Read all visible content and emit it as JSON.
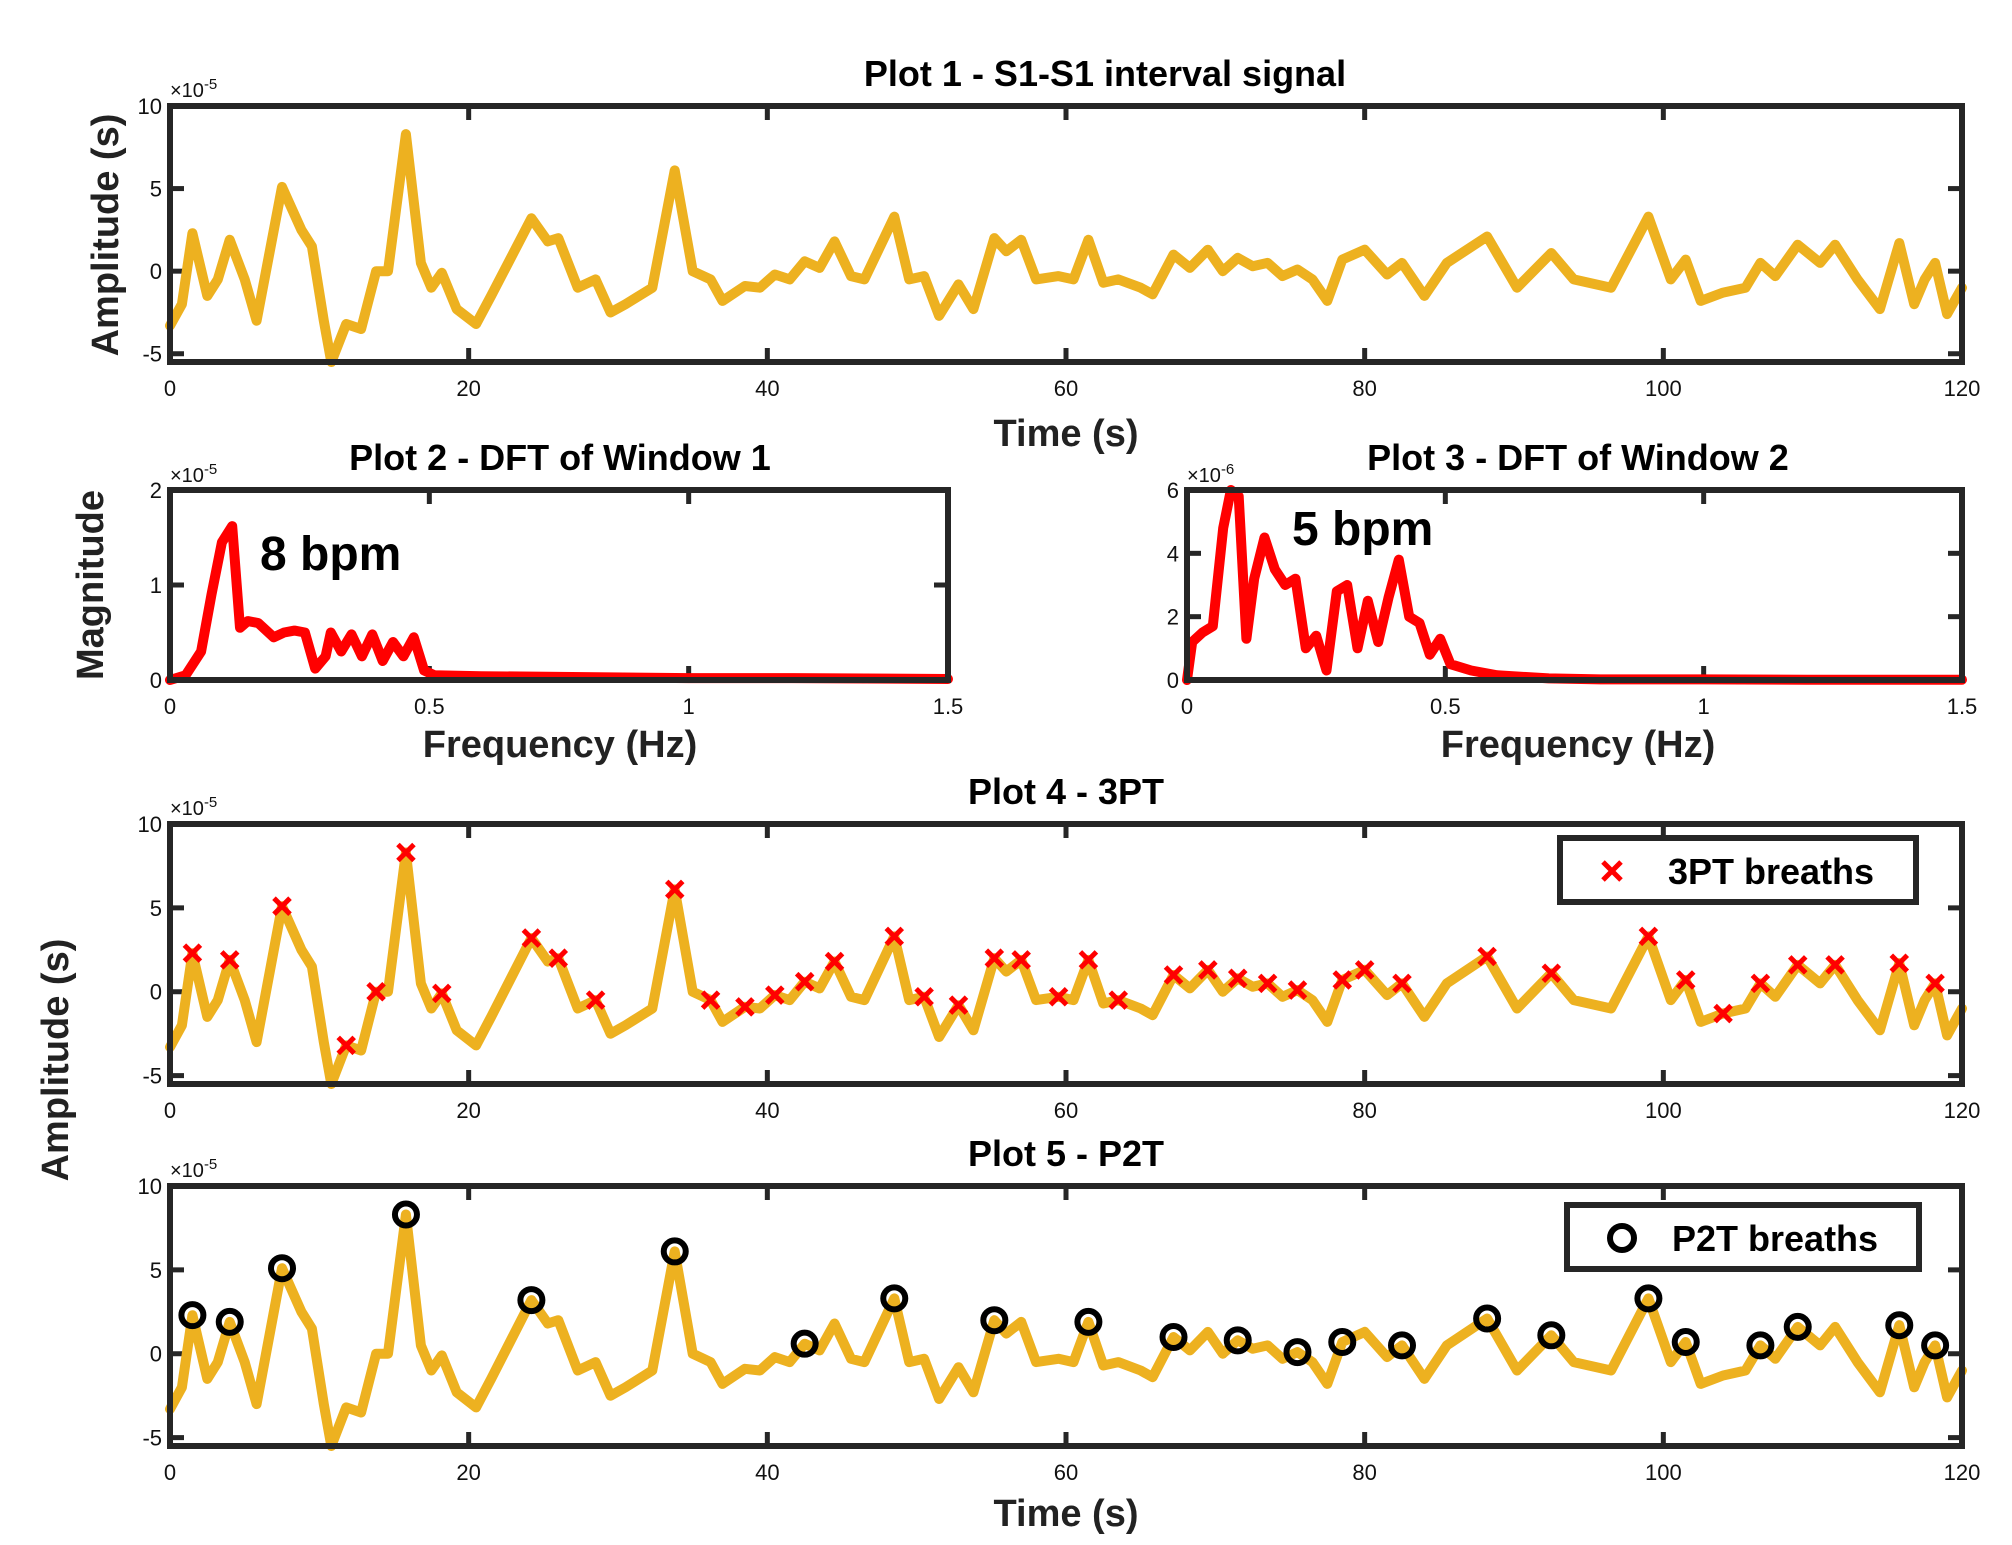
{
  "colors": {
    "signal": "#EDB120",
    "dft": "#FF0000",
    "marker3pt": "#FF0000",
    "markerP2T": "#000000",
    "axis": "#262626"
  },
  "chart_data": [
    {
      "id": "p1",
      "type": "line",
      "title": "Plot 1 - S1-S1 interval signal",
      "xlabel": "Time (s)",
      "ylabel": "Amplitude (s)",
      "exponent": {
        "base": "×10",
        "power": "-5"
      },
      "xlim": [
        0,
        120
      ],
      "ylim": [
        -5.5,
        10
      ],
      "xticks": [
        0,
        20,
        40,
        60,
        80,
        100,
        120
      ],
      "xtick_labels": [
        "0",
        "20",
        "40",
        "60",
        "80",
        "100",
        "120"
      ],
      "yticks": [
        -5,
        0,
        5,
        10
      ],
      "ytick_labels": [
        "-5",
        "0",
        "5",
        "10"
      ],
      "series": [
        {
          "name": "S1-S1 interval",
          "signal": "shared"
        }
      ]
    },
    {
      "id": "p2",
      "type": "line",
      "title": "Plot 2 - DFT of Window 1",
      "xlabel": "Frequency (Hz)",
      "ylabel": "Magnitude",
      "exponent": {
        "base": "×10",
        "power": "-5"
      },
      "xlim": [
        0,
        1.5
      ],
      "ylim": [
        0,
        2
      ],
      "xticks": [
        0,
        0.5,
        1,
        1.5
      ],
      "xtick_labels": [
        "0",
        "0.5",
        "1",
        "1.5"
      ],
      "yticks": [
        0,
        1,
        2
      ],
      "ytick_labels": [
        "0",
        "1",
        "2"
      ],
      "annotation": {
        "text": "8 bpm",
        "x": 0.17,
        "y": 1.35
      },
      "x": [
        0,
        0.03,
        0.06,
        0.08,
        0.1,
        0.12,
        0.135,
        0.15,
        0.17,
        0.2,
        0.22,
        0.24,
        0.26,
        0.28,
        0.3,
        0.31,
        0.33,
        0.35,
        0.37,
        0.39,
        0.41,
        0.43,
        0.45,
        0.47,
        0.49,
        0.51,
        0.6,
        0.8,
        1.0,
        1.2,
        1.5
      ],
      "y": [
        0,
        0.05,
        0.3,
        0.9,
        1.45,
        1.62,
        0.55,
        0.62,
        0.6,
        0.45,
        0.5,
        0.52,
        0.5,
        0.12,
        0.25,
        0.5,
        0.3,
        0.48,
        0.25,
        0.48,
        0.2,
        0.4,
        0.25,
        0.45,
        0.1,
        0.05,
        0.04,
        0.03,
        0.02,
        0.02,
        0.01
      ]
    },
    {
      "id": "p3",
      "type": "line",
      "title": "Plot 3 - DFT of Window 2",
      "xlabel": "Frequency (Hz)",
      "ylabel": "",
      "exponent": {
        "base": "×10",
        "power": "-6"
      },
      "xlim": [
        0,
        1.5
      ],
      "ylim": [
        0,
        6
      ],
      "xticks": [
        0,
        0.5,
        1,
        1.5
      ],
      "xtick_labels": [
        "0",
        "0.5",
        "1",
        "1.5"
      ],
      "yticks": [
        0,
        2,
        4,
        6
      ],
      "ytick_labels": [
        "0",
        "2",
        "4",
        "6"
      ],
      "annotation": {
        "text": "5 bpm",
        "x": 0.2,
        "y": 4.5
      },
      "x": [
        0,
        0.01,
        0.03,
        0.05,
        0.07,
        0.085,
        0.1,
        0.115,
        0.13,
        0.15,
        0.17,
        0.19,
        0.21,
        0.23,
        0.25,
        0.27,
        0.29,
        0.31,
        0.33,
        0.35,
        0.37,
        0.39,
        0.41,
        0.43,
        0.45,
        0.47,
        0.49,
        0.51,
        0.55,
        0.6,
        0.7,
        0.8,
        1.0,
        1.2,
        1.5
      ],
      "y": [
        0,
        1.2,
        1.5,
        1.7,
        4.8,
        6.0,
        5.8,
        1.3,
        3.2,
        4.5,
        3.5,
        3.0,
        3.2,
        1.0,
        1.4,
        0.3,
        2.8,
        3.0,
        1.0,
        2.5,
        1.2,
        2.6,
        3.8,
        2.0,
        1.8,
        0.8,
        1.3,
        0.5,
        0.3,
        0.15,
        0.05,
        0.02,
        0.02,
        0.01,
        0.01
      ]
    },
    {
      "id": "p4",
      "type": "line",
      "title": "Plot 4 - 3PT",
      "xlabel": "",
      "ylabel": "Amplitude (s)",
      "exponent": {
        "base": "×10",
        "power": "-5"
      },
      "xlim": [
        0,
        120
      ],
      "ylim": [
        -5.5,
        10
      ],
      "xticks": [
        0,
        20,
        40,
        60,
        80,
        100,
        120
      ],
      "xtick_labels": [
        "0",
        "20",
        "40",
        "60",
        "80",
        "100",
        "120"
      ],
      "yticks": [
        -5,
        0,
        5,
        10
      ],
      "ytick_labels": [
        "-5",
        "0",
        "5",
        "10"
      ],
      "legend": {
        "label": "3PT breaths",
        "position": "top-right"
      },
      "series": [
        {
          "name": "S1-S1 interval",
          "signal": "shared"
        }
      ],
      "markers": {
        "shape": "x",
        "x": [
          1.5,
          4,
          7.5,
          11.8,
          13.8,
          15.8,
          18.2,
          24.2,
          26,
          28.5,
          33.8,
          36.2,
          38.5,
          40.5,
          42.5,
          44.5,
          48.5,
          50.5,
          52.8,
          55.2,
          57,
          59.5,
          61.5,
          63.5,
          67.2,
          69.5,
          71.5,
          73.5,
          75.5,
          78.5,
          80,
          82.5,
          88.2,
          92.5,
          99,
          101.5,
          104,
          106.5,
          109,
          111.5,
          115.8,
          118.2
        ],
        "y": [
          2.3,
          1.9,
          5.1,
          -3.2,
          0,
          8.3,
          -0.1,
          3.2,
          2.0,
          -0.5,
          6.1,
          -0.5,
          -0.9,
          -0.2,
          0.6,
          1.8,
          3.3,
          -0.3,
          -0.8,
          2.0,
          1.9,
          -0.3,
          1.9,
          -0.5,
          1.0,
          1.3,
          0.8,
          0.5,
          0.1,
          0.7,
          1.3,
          0.5,
          2.1,
          1.1,
          3.3,
          0.7,
          -1.3,
          0.5,
          1.6,
          1.6,
          1.7,
          0.5
        ]
      }
    },
    {
      "id": "p5",
      "type": "line",
      "title": "Plot 5 - P2T",
      "xlabel": "Time (s)",
      "ylabel": "",
      "exponent": {
        "base": "×10",
        "power": "-5"
      },
      "xlim": [
        0,
        120
      ],
      "ylim": [
        -5.5,
        10
      ],
      "xticks": [
        0,
        20,
        40,
        60,
        80,
        100,
        120
      ],
      "xtick_labels": [
        "0",
        "20",
        "40",
        "60",
        "80",
        "100",
        "120"
      ],
      "yticks": [
        -5,
        0,
        5,
        10
      ],
      "ytick_labels": [
        "-5",
        "0",
        "5",
        "10"
      ],
      "legend": {
        "label": "P2T breaths",
        "position": "top-right"
      },
      "series": [
        {
          "name": "S1-S1 interval",
          "signal": "shared"
        }
      ],
      "markers": {
        "shape": "o",
        "x": [
          1.5,
          4,
          7.5,
          15.8,
          24.2,
          33.8,
          42.5,
          48.5,
          55.2,
          61.5,
          67.2,
          71.5,
          75.5,
          78.5,
          82.5,
          88.2,
          92.5,
          99,
          101.5,
          106.5,
          109,
          115.8,
          118.2
        ],
        "y": [
          2.3,
          1.9,
          5.1,
          8.3,
          3.2,
          6.1,
          0.6,
          3.3,
          2.0,
          1.9,
          1.0,
          0.8,
          0.1,
          0.7,
          0.5,
          2.1,
          1.1,
          3.3,
          0.7,
          0.5,
          1.6,
          1.7,
          0.5
        ]
      }
    }
  ],
  "signal": {
    "x": [
      0,
      0.8,
      1.5,
      2.5,
      3.2,
      4,
      5,
      5.8,
      7.5,
      8.8,
      9.5,
      10.3,
      10.8,
      11.8,
      12.8,
      13.8,
      14.6,
      15.8,
      16.8,
      17.5,
      18.2,
      19.2,
      20.5,
      21.5,
      24.2,
      25.3,
      26,
      27.3,
      28.5,
      29.5,
      30.5,
      32.3,
      33.8,
      35,
      36.2,
      37,
      38.5,
      39.5,
      40.5,
      41.5,
      42.5,
      43.5,
      44.5,
      45.6,
      46.5,
      48.5,
      49.5,
      50.5,
      51.5,
      52.8,
      53.8,
      55.2,
      56,
      57,
      58,
      59.5,
      60.5,
      61.5,
      62.5,
      63.5,
      65,
      65.8,
      67.2,
      68.3,
      69.5,
      70.5,
      71.5,
      72.5,
      73.5,
      74.5,
      75.5,
      76.5,
      77.5,
      78.5,
      80,
      81.5,
      82.5,
      84,
      85.5,
      88.2,
      90.2,
      92.5,
      94,
      96.5,
      99,
      100.5,
      101.5,
      102.5,
      104,
      105.5,
      106.5,
      107.5,
      109,
      110.5,
      111.5,
      113,
      114.5,
      115.8,
      116.8,
      117.5,
      118.2,
      119,
      120
    ],
    "y": [
      -3.3,
      -2,
      2.3,
      -1.5,
      -0.5,
      1.9,
      -0.5,
      -3,
      5.1,
      2.5,
      1.5,
      -3,
      -5.5,
      -3.2,
      -3.5,
      0,
      0,
      8.3,
      0.5,
      -1,
      -0.1,
      -2.3,
      -3.2,
      -1.5,
      3.2,
      1.8,
      2,
      -1,
      -0.5,
      -2.5,
      -2,
      -1,
      6.1,
      0,
      -0.5,
      -1.8,
      -0.9,
      -1,
      -0.2,
      -0.5,
      0.6,
      0.2,
      1.8,
      -0.3,
      -0.5,
      3.3,
      -0.5,
      -0.3,
      -2.7,
      -0.8,
      -2.3,
      2,
      1.2,
      1.9,
      -0.5,
      -0.3,
      -0.5,
      1.9,
      -0.7,
      -0.5,
      -1,
      -1.4,
      1,
      0.2,
      1.3,
      0,
      0.8,
      0.3,
      0.5,
      -0.3,
      0.1,
      -0.5,
      -1.8,
      0.7,
      1.3,
      -0.2,
      0.5,
      -1.5,
      0.5,
      2.1,
      -1,
      1.1,
      -0.5,
      -1,
      3.3,
      -0.5,
      0.7,
      -1.8,
      -1.3,
      -1,
      0.5,
      -0.3,
      1.6,
      0.5,
      1.6,
      -0.5,
      -2.3,
      1.7,
      -2,
      -0.5,
      0.5,
      -2.6,
      -1
    ]
  }
}
